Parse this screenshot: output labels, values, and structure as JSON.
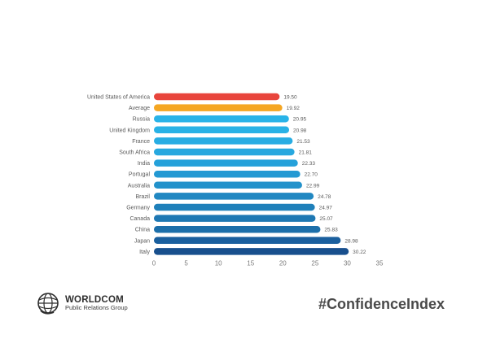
{
  "chart_data": {
    "type": "bar",
    "orientation": "horizontal",
    "categories": [
      "United States of America",
      "Average",
      "Russia",
      "United Kingdom",
      "France",
      "South Africa",
      "India",
      "Portugal",
      "Australia",
      "Brazil",
      "Germany",
      "Canada",
      "China",
      "Japan",
      "Italy"
    ],
    "values": [
      19.5,
      19.92,
      20.95,
      20.98,
      21.53,
      21.81,
      22.33,
      22.7,
      22.99,
      24.78,
      24.97,
      25.07,
      25.83,
      28.98,
      30.22
    ],
    "value_labels": [
      "19.50",
      "19.92",
      "20.95",
      "20.98",
      "21.53",
      "21.81",
      "22.33",
      "22.70",
      "22.99",
      "24.78",
      "24.97",
      "25.07",
      "25.83",
      "28.98",
      "30.22"
    ],
    "colors": [
      "#e8453c",
      "#f5a623",
      "#29b3e8",
      "#29b2e6",
      "#28ade3",
      "#27a8df",
      "#25a1da",
      "#2499d3",
      "#2392cb",
      "#2188c2",
      "#1f80ba",
      "#1e78b3",
      "#1c6faa",
      "#1a5f9e",
      "#184f8d"
    ],
    "xlim": [
      0,
      35
    ],
    "xticks": [
      "0",
      "5",
      "10",
      "15",
      "20",
      "25",
      "30",
      "35"
    ],
    "xlabel": "",
    "ylabel": "",
    "title": "",
    "grid": false
  },
  "branding": {
    "logo_name": "WORLDCOM",
    "logo_subtitle": "Public Relations Group",
    "hashtag": "#ConfidenceIndex"
  }
}
